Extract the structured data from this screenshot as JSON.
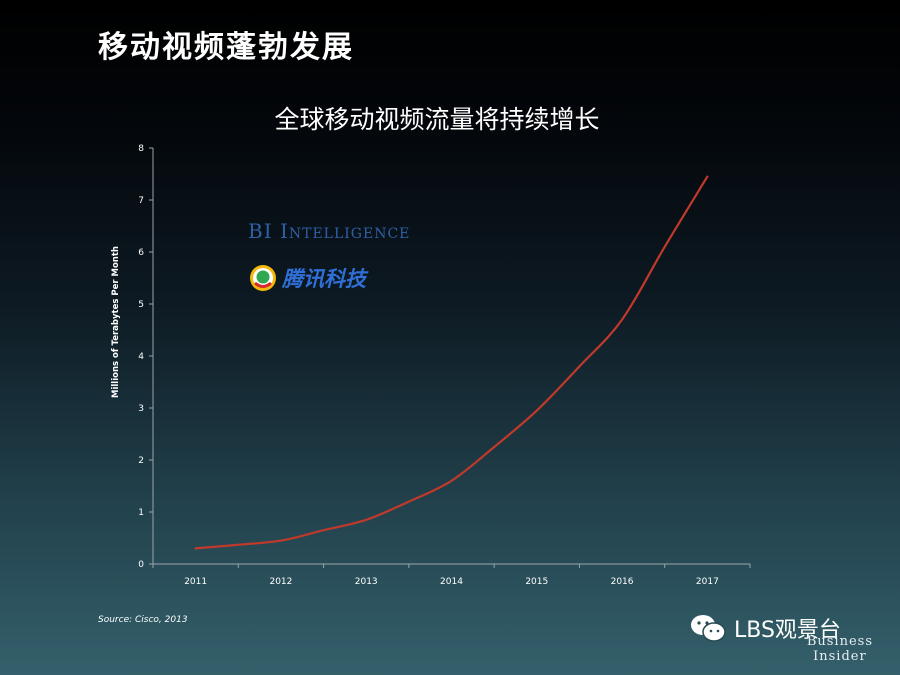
{
  "slide": {
    "title": "移动视频蓬勃发展",
    "source": "Source: Cisco, 2013"
  },
  "logos": {
    "bi_intelligence": "BI Intelligence",
    "tencent_tech": "腾讯科技",
    "watermark": "LBS观景台",
    "business_insider_line1": "Business",
    "business_insider_line2": "Insider"
  },
  "colors": {
    "line": "#c0392b",
    "axis": "#9aa4a8",
    "bi_blue": "#2f5fa6",
    "tencent_blue": "#2f6fd6"
  },
  "icons": {
    "tencent": "tencent-qq-icon",
    "wechat": "wechat-icon"
  },
  "chart_data": {
    "type": "line",
    "title": "全球移动视频流量将持续增长",
    "xlabel": "",
    "ylabel": "Millions of Terabytes Per Month",
    "x": [
      2011,
      2011.5,
      2012,
      2012.5,
      2013,
      2013.5,
      2014,
      2014.5,
      2015,
      2015.5,
      2016,
      2016.5,
      2017
    ],
    "series": [
      {
        "values": [
          0.3,
          0.37,
          0.45,
          0.65,
          0.85,
          1.2,
          1.6,
          2.25,
          2.95,
          3.8,
          4.7,
          6.1,
          7.45
        ]
      }
    ],
    "x_ticks": [
      "2011",
      "2012",
      "2013",
      "2014",
      "2015",
      "2016",
      "2017"
    ],
    "y_ticks": [
      "0",
      "1",
      "2",
      "3",
      "4",
      "5",
      "6",
      "7",
      "8"
    ],
    "xlim": [
      2010.5,
      2017.5
    ],
    "ylim": [
      0,
      8
    ],
    "grid": false,
    "legend": "none"
  }
}
